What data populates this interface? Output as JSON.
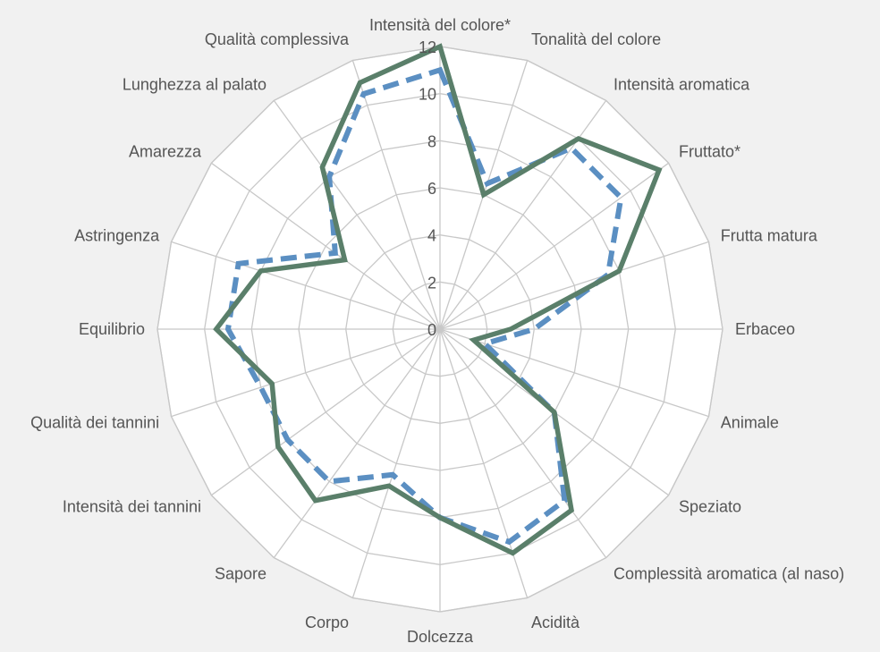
{
  "chart_data": {
    "type": "radar",
    "categories": [
      "Intensità del colore*",
      "Tonalità del colore",
      "Intensità aromatica",
      "Fruttato*",
      "Frutta matura",
      "Erbaceo",
      "Animale",
      "Speziato",
      "Complessità aromatica (al naso)",
      "Acidità",
      "Dolcezza",
      "Corpo",
      "Sapore",
      "Intensità dei tannini",
      "Qualità dei tannini",
      "Equilibrio",
      "Astringenza",
      "Amarezza",
      "Lunghezza al palato",
      "Qualità complessiva"
    ],
    "series": [
      {
        "style": "solid",
        "color": "#5a7f6a",
        "values": [
          12,
          6,
          10,
          11.5,
          8,
          3,
          1.5,
          6,
          9.5,
          10,
          8,
          7,
          9,
          8.5,
          7.5,
          9.5,
          8,
          5,
          8.5,
          11
        ]
      },
      {
        "style": "dashed",
        "color": "#5b8fc2",
        "values": [
          11,
          6.5,
          9.5,
          9.5,
          7.5,
          4,
          2,
          6,
          9,
          9.5,
          8,
          6.5,
          8,
          8,
          8,
          9,
          9,
          5.5,
          8,
          10.5
        ]
      }
    ],
    "rmax": 12,
    "ticks": [
      0,
      2,
      4,
      6,
      8,
      10,
      12
    ],
    "grid": true,
    "background": "#f1f1f1"
  }
}
